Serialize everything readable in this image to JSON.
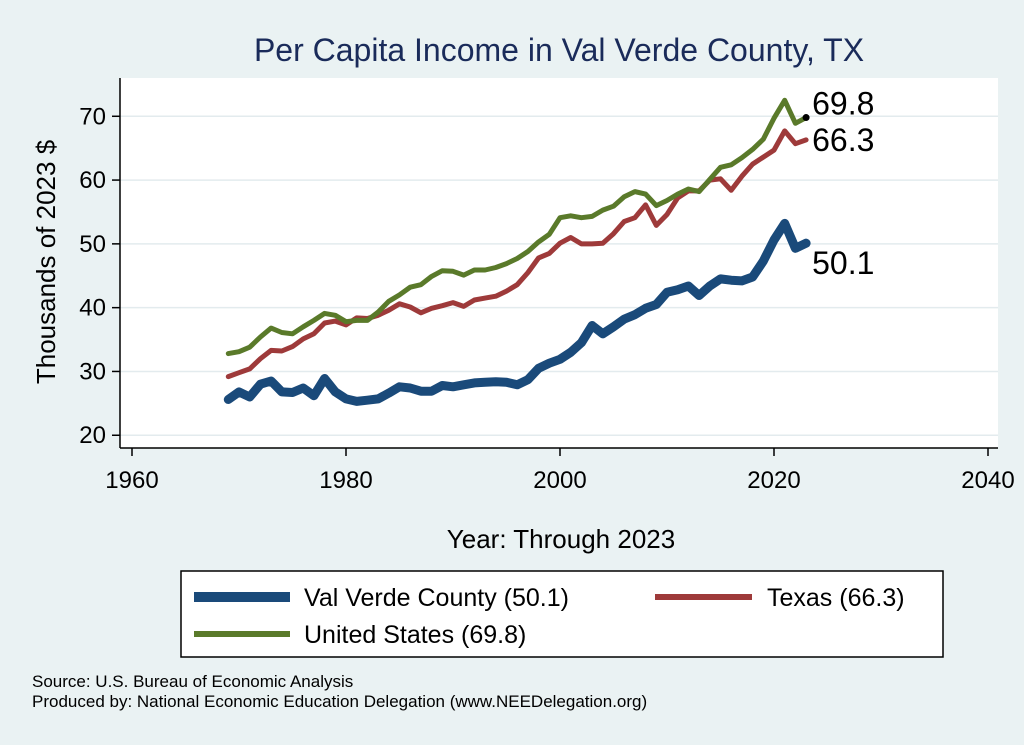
{
  "chart_data": {
    "type": "line",
    "title": "Per Capita Income in Val Verde County, TX",
    "xlabel": "Year: Through 2023",
    "ylabel": "Thousands of 2023 $",
    "xlim": [
      1960,
      2040
    ],
    "ylim": [
      18,
      76
    ],
    "xticks": [
      1960,
      1980,
      2000,
      2020,
      2040
    ],
    "yticks": [
      20,
      30,
      40,
      50,
      60,
      70
    ],
    "grid": "horizontal",
    "legend_position": "bottom",
    "x": [
      1969,
      1970,
      1971,
      1972,
      1973,
      1974,
      1975,
      1976,
      1977,
      1978,
      1979,
      1980,
      1981,
      1982,
      1983,
      1984,
      1985,
      1986,
      1987,
      1988,
      1989,
      1990,
      1991,
      1992,
      1993,
      1994,
      1995,
      1996,
      1997,
      1998,
      1999,
      2000,
      2001,
      2002,
      2003,
      2004,
      2005,
      2006,
      2007,
      2008,
      2009,
      2010,
      2011,
      2012,
      2013,
      2014,
      2015,
      2016,
      2017,
      2018,
      2019,
      2020,
      2021,
      2022,
      2023
    ],
    "series": [
      {
        "name": "Val Verde County (50.1)",
        "color": "#1a4a7a",
        "end_label": "50.1",
        "values": [
          25.6,
          26.8,
          26.0,
          28.0,
          28.5,
          26.8,
          26.7,
          27.4,
          26.2,
          28.9,
          26.8,
          25.7,
          25.3,
          25.5,
          25.7,
          26.6,
          27.6,
          27.4,
          26.9,
          26.9,
          27.8,
          27.6,
          27.9,
          28.2,
          28.3,
          28.4,
          28.3,
          27.9,
          28.7,
          30.5,
          31.3,
          31.9,
          33.0,
          34.5,
          37.2,
          35.9,
          37.0,
          38.2,
          38.9,
          39.9,
          40.5,
          42.4,
          42.8,
          43.4,
          41.9,
          43.4,
          44.5,
          44.3,
          44.2,
          44.8,
          47.3,
          50.6,
          53.2,
          49.3,
          50.1
        ]
      },
      {
        "name": "Texas (66.3)",
        "color": "#9e3a3a",
        "end_label": "66.3",
        "values": [
          29.2,
          29.8,
          30.4,
          32.0,
          33.3,
          33.2,
          33.9,
          35.1,
          35.9,
          37.6,
          37.9,
          37.3,
          38.4,
          38.3,
          38.8,
          39.6,
          40.6,
          40.1,
          39.2,
          39.9,
          40.3,
          40.8,
          40.2,
          41.2,
          41.5,
          41.8,
          42.6,
          43.6,
          45.5,
          47.8,
          48.5,
          50.1,
          51.0,
          50.0,
          50.0,
          50.1,
          51.6,
          53.5,
          54.1,
          56.1,
          52.9,
          54.6,
          57.2,
          58.3,
          58.3,
          60.0,
          60.2,
          58.4,
          60.6,
          62.5,
          63.6,
          64.7,
          67.7,
          65.7,
          66.3
        ]
      },
      {
        "name": "United States (69.8)",
        "color": "#5a7a2a",
        "end_label": "69.8",
        "values": [
          32.8,
          33.1,
          33.8,
          35.4,
          36.8,
          36.1,
          35.9,
          37.0,
          38.0,
          39.1,
          38.8,
          37.8,
          38.0,
          38.0,
          39.3,
          41.0,
          42.0,
          43.2,
          43.6,
          44.9,
          45.8,
          45.7,
          45.1,
          45.9,
          45.9,
          46.3,
          46.9,
          47.7,
          48.8,
          50.3,
          51.5,
          54.1,
          54.4,
          54.1,
          54.3,
          55.3,
          55.9,
          57.4,
          58.2,
          57.8,
          56.0,
          56.8,
          57.8,
          58.6,
          58.2,
          60.1,
          62.0,
          62.4,
          63.5,
          64.8,
          66.4,
          69.7,
          72.5,
          68.9,
          69.8
        ]
      }
    ]
  },
  "footer": {
    "source": "Source: U.S. Bureau of Economic Analysis",
    "produced_by": "Produced by: National Economic Education Delegation (www.NEEDelegation.org)"
  }
}
